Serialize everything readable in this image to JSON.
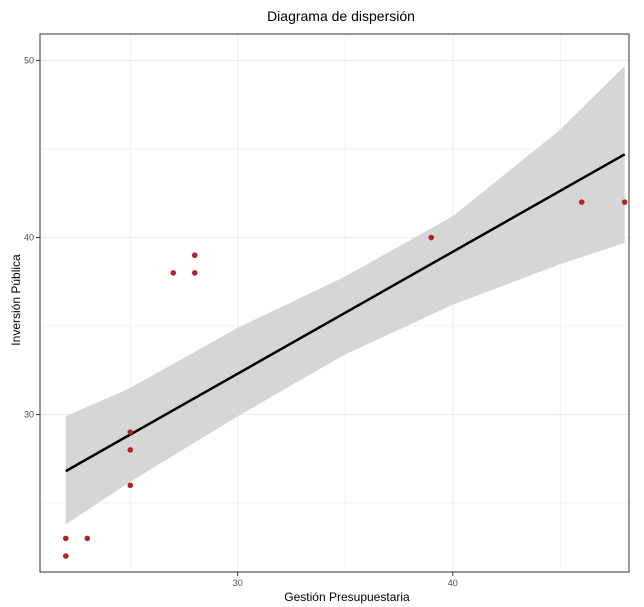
{
  "chart_data": {
    "type": "scatter",
    "title": "Diagrama de dispersión",
    "xlabel": "Gestión Presupuestaria",
    "ylabel": "Inversión Pública",
    "xlim": [
      20.8,
      48.2
    ],
    "ylim": [
      21.1,
      51.5
    ],
    "x_ticks": [
      30,
      40
    ],
    "y_ticks": [
      30,
      40,
      50
    ],
    "grid": true,
    "points": [
      {
        "x": 22,
        "y": 22
      },
      {
        "x": 22,
        "y": 23
      },
      {
        "x": 23,
        "y": 23
      },
      {
        "x": 25,
        "y": 26
      },
      {
        "x": 25,
        "y": 28
      },
      {
        "x": 25,
        "y": 29
      },
      {
        "x": 27,
        "y": 38
      },
      {
        "x": 28,
        "y": 38
      },
      {
        "x": 28,
        "y": 39
      },
      {
        "x": 39,
        "y": 40
      },
      {
        "x": 46,
        "y": 42
      },
      {
        "x": 48,
        "y": 42
      }
    ],
    "fit_line": {
      "x": [
        22,
        48
      ],
      "y": [
        26.8,
        44.7
      ]
    },
    "confidence_band": {
      "x": [
        22,
        25,
        30,
        35,
        40,
        45,
        48
      ],
      "lower": [
        23.8,
        26.2,
        29.9,
        33.4,
        36.2,
        38.5,
        39.7
      ],
      "upper": [
        29.9,
        31.5,
        34.9,
        37.8,
        41.2,
        46.1,
        49.7
      ]
    },
    "colors": {
      "points": "#b22222",
      "line": "#000000",
      "band": "#d6d6d6",
      "grid": "#ebebeb",
      "panel_border": "#333333"
    }
  }
}
